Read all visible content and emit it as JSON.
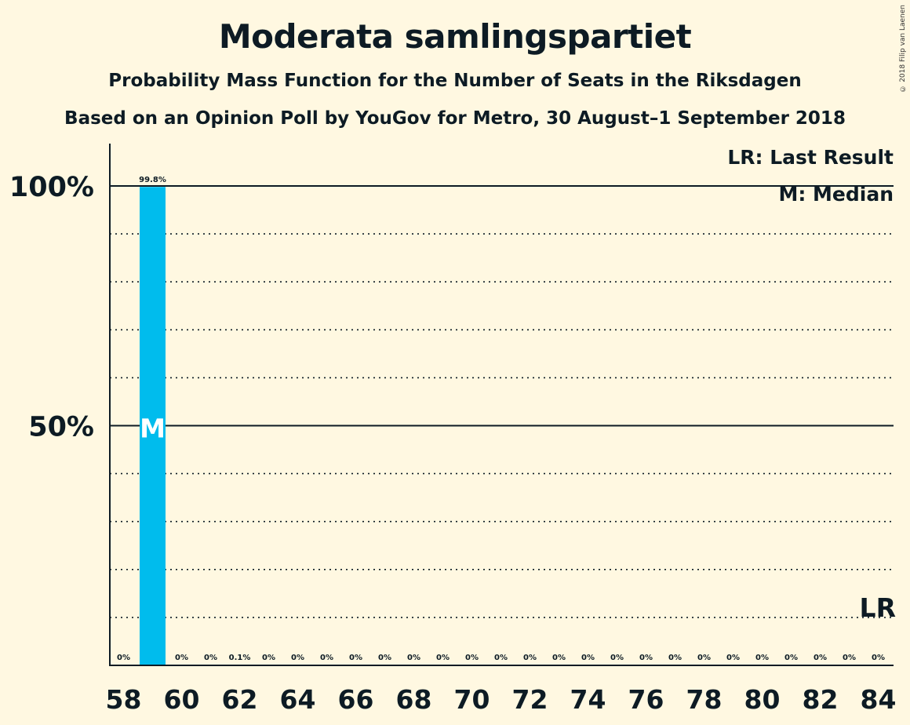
{
  "chart_data": {
    "type": "bar",
    "title": "Moderata samlingspartiet",
    "subtitle": "Probability Mass Function for the Number of Seats in the Riksdagen",
    "subtitle2": "Based on an Opinion Poll by YouGov for Metro, 30 August–1 September 2018",
    "copyright": "© 2018 Filip van Laenen",
    "categories": [
      58,
      59,
      60,
      61,
      62,
      63,
      64,
      65,
      66,
      67,
      68,
      69,
      70,
      71,
      72,
      73,
      74,
      75,
      76,
      77,
      78,
      79,
      80,
      81,
      82,
      83,
      84
    ],
    "values": [
      0,
      99.8,
      0,
      0,
      0.1,
      0,
      0,
      0,
      0,
      0,
      0,
      0,
      0,
      0,
      0,
      0,
      0,
      0,
      0,
      0,
      0,
      0,
      0,
      0,
      0,
      0,
      0
    ],
    "value_labels": [
      "0%",
      "99.8%",
      "0%",
      "0%",
      "0.1%",
      "0%",
      "0%",
      "0%",
      "0%",
      "0%",
      "0%",
      "0%",
      "0%",
      "0%",
      "0%",
      "0%",
      "0%",
      "0%",
      "0%",
      "0%",
      "0%",
      "0%",
      "0%",
      "0%",
      "0%",
      "0%",
      "0%"
    ],
    "x_tick_labels": [
      "58",
      "60",
      "62",
      "64",
      "66",
      "68",
      "70",
      "72",
      "74",
      "76",
      "78",
      "80",
      "82",
      "84"
    ],
    "y_tick_labels": [
      "100%",
      "50%"
    ],
    "ylim": [
      0,
      100
    ],
    "median_seat": 59,
    "median_marker": "M",
    "last_result_marker": "LR",
    "legend": [
      "LR: Last Result",
      "M: Median"
    ],
    "legend_placement": "top-right",
    "grid": true,
    "bar_color": "#00BCED"
  }
}
